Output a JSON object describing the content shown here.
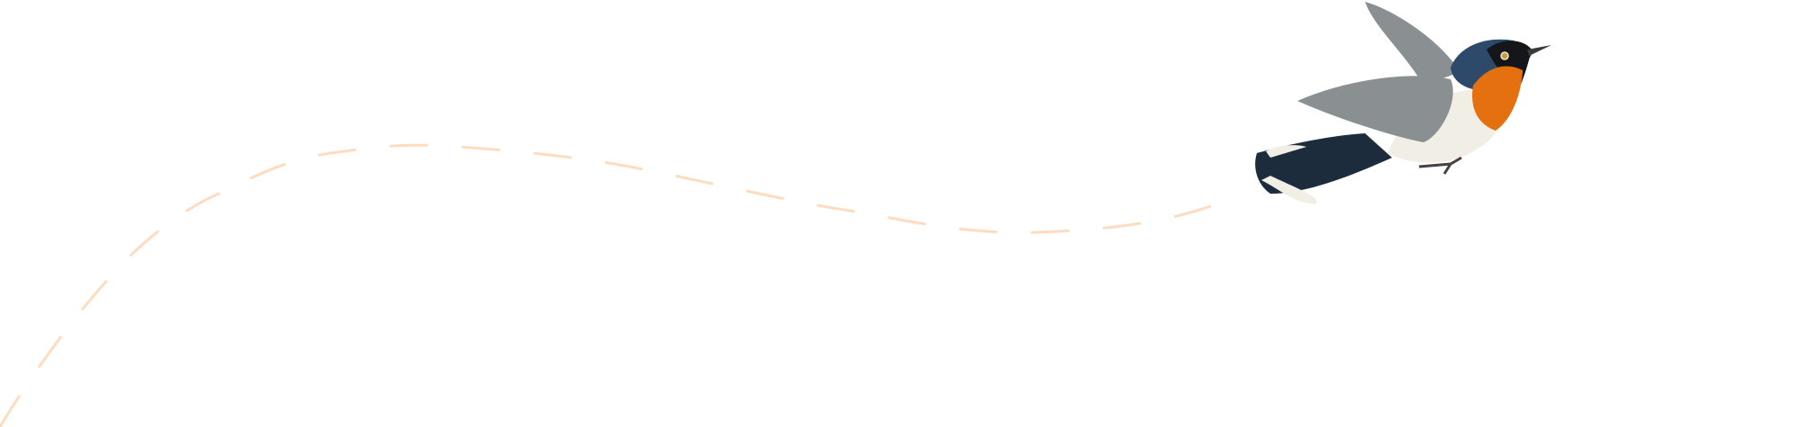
{
  "colors": {
    "background": "#ffffff",
    "flight_path": "#fddcbf",
    "bird_throat": "#e5700f",
    "bird_head": "#2e4a6b",
    "bird_mask": "#15161a",
    "bird_wing": "#8a8f92",
    "bird_belly": "#f1eee6",
    "bird_tail": "#1d2c3c"
  },
  "illustration": {
    "subject": "bird-icon",
    "path_style": "dashed"
  }
}
